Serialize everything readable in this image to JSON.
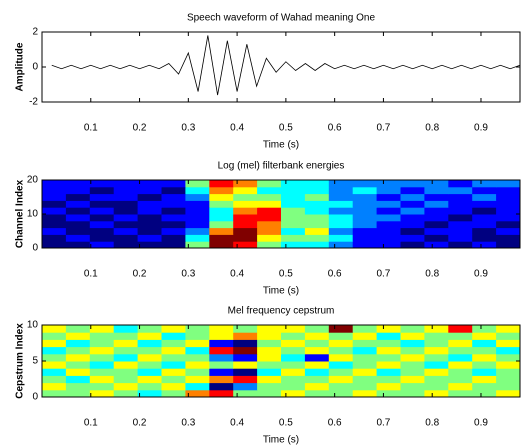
{
  "chart_data": [
    {
      "type": "line",
      "title": "Speech waveform of Wahad meaning One",
      "xlabel": "Time (s)",
      "ylabel": "Amplitude",
      "x": [
        0.02,
        0.04,
        0.06,
        0.08,
        0.1,
        0.12,
        0.14,
        0.16,
        0.18,
        0.2,
        0.22,
        0.24,
        0.26,
        0.28,
        0.3,
        0.32,
        0.34,
        0.36,
        0.38,
        0.4,
        0.42,
        0.44,
        0.46,
        0.48,
        0.5,
        0.52,
        0.54,
        0.56,
        0.58,
        0.6,
        0.62,
        0.64,
        0.66,
        0.68,
        0.7,
        0.72,
        0.74,
        0.76,
        0.78,
        0.8,
        0.82,
        0.84,
        0.86,
        0.88,
        0.9,
        0.92,
        0.94,
        0.96,
        0.98
      ],
      "series": [
        {
          "color": "#000000",
          "values": [
            0.1,
            -0.1,
            0.1,
            -0.1,
            0.1,
            -0.1,
            0.1,
            -0.1,
            0.1,
            -0.1,
            0.1,
            -0.1,
            0.2,
            -0.4,
            0.8,
            -1.4,
            1.8,
            -1.6,
            1.5,
            -1.4,
            1.3,
            -1.1,
            0.5,
            -0.3,
            0.3,
            -0.2,
            0.2,
            -0.2,
            0.2,
            -0.1,
            0.1,
            -0.1,
            0.1,
            -0.1,
            0.1,
            -0.1,
            0.1,
            -0.1,
            0.1,
            -0.1,
            0.1,
            -0.1,
            0.1,
            -0.1,
            0.1,
            -0.1,
            0.1,
            -0.1,
            0.1
          ]
        }
      ],
      "xlim": [
        0,
        0.98
      ],
      "xticks": [
        0.1,
        0.2,
        0.3,
        0.4,
        0.5,
        0.6,
        0.7,
        0.8,
        0.9
      ],
      "ylim": [
        -2,
        2
      ],
      "yticks": [
        -2,
        0,
        2
      ]
    },
    {
      "type": "heatmap",
      "title": "Log (mel) filterbank energies",
      "xlabel": "Time (s)",
      "ylabel": "Channel Index",
      "colormap": "jet",
      "z": [
        [
          2,
          2,
          3,
          2,
          2,
          2,
          6,
          10,
          9,
          6,
          5,
          5,
          4,
          3,
          3,
          2,
          3,
          2,
          3,
          2
        ],
        [
          2,
          3,
          2,
          2,
          3,
          2,
          5,
          10,
          10,
          7,
          6,
          6,
          5,
          3,
          3,
          3,
          2,
          3,
          2,
          2
        ],
        [
          3,
          2,
          2,
          3,
          2,
          3,
          4,
          8,
          10,
          8,
          5,
          7,
          4,
          3,
          3,
          2,
          3,
          3,
          2,
          3
        ],
        [
          2,
          2,
          3,
          2,
          2,
          2,
          3,
          6,
          9,
          8,
          6,
          6,
          5,
          4,
          3,
          3,
          2,
          3,
          3,
          2
        ],
        [
          2,
          3,
          2,
          3,
          2,
          3,
          3,
          5,
          9,
          9,
          6,
          6,
          5,
          4,
          4,
          3,
          3,
          2,
          3,
          3
        ],
        [
          3,
          2,
          3,
          2,
          3,
          2,
          3,
          5,
          8,
          9,
          6,
          5,
          4,
          4,
          3,
          4,
          3,
          3,
          2,
          3
        ],
        [
          2,
          3,
          2,
          2,
          3,
          3,
          3,
          6,
          7,
          7,
          5,
          5,
          5,
          4,
          4,
          3,
          4,
          3,
          3,
          3
        ],
        [
          3,
          2,
          3,
          3,
          2,
          3,
          4,
          7,
          6,
          6,
          5,
          6,
          4,
          4,
          3,
          4,
          3,
          3,
          4,
          3
        ],
        [
          3,
          3,
          2,
          3,
          3,
          2,
          5,
          8,
          7,
          5,
          5,
          5,
          4,
          5,
          4,
          3,
          4,
          4,
          3,
          3
        ],
        [
          3,
          3,
          3,
          3,
          3,
          3,
          6,
          9,
          8,
          6,
          5,
          5,
          4,
          4,
          4,
          4,
          4,
          3,
          4,
          4
        ]
      ],
      "xlim": [
        0,
        0.98
      ],
      "xticks": [
        0.1,
        0.2,
        0.3,
        0.4,
        0.5,
        0.6,
        0.7,
        0.8,
        0.9
      ],
      "ylim": [
        0,
        20
      ],
      "yticks": [
        0,
        10,
        20
      ]
    },
    {
      "type": "heatmap",
      "title": "Mel frequency cepstrum",
      "xlabel": "Time (s)",
      "ylabel": "Cepstrum Index",
      "colormap": "jet",
      "z": [
        [
          5,
          5,
          6,
          5,
          4,
          5,
          7,
          8,
          5,
          5,
          6,
          5,
          5,
          6,
          5,
          5,
          6,
          5,
          5,
          6
        ],
        [
          6,
          5,
          5,
          6,
          5,
          6,
          4,
          1,
          3,
          5,
          5,
          6,
          5,
          5,
          6,
          5,
          5,
          6,
          5,
          5
        ],
        [
          5,
          4,
          6,
          5,
          6,
          5,
          6,
          7,
          8,
          6,
          5,
          5,
          6,
          5,
          5,
          6,
          5,
          5,
          6,
          5
        ],
        [
          4,
          6,
          5,
          5,
          4,
          6,
          5,
          2,
          1,
          4,
          6,
          4,
          5,
          6,
          4,
          5,
          6,
          5,
          4,
          5
        ],
        [
          6,
          5,
          4,
          6,
          5,
          4,
          6,
          5,
          6,
          5,
          5,
          6,
          4,
          5,
          6,
          5,
          4,
          6,
          5,
          6
        ],
        [
          5,
          6,
          5,
          4,
          6,
          5,
          5,
          3,
          2,
          6,
          4,
          2,
          6,
          5,
          5,
          6,
          5,
          4,
          6,
          5
        ],
        [
          4,
          5,
          6,
          5,
          5,
          6,
          4,
          8,
          9,
          6,
          5,
          6,
          5,
          4,
          6,
          5,
          6,
          5,
          5,
          4
        ],
        [
          6,
          4,
          5,
          6,
          4,
          5,
          6,
          2,
          1,
          5,
          6,
          5,
          6,
          5,
          5,
          4,
          5,
          6,
          4,
          6
        ],
        [
          5,
          6,
          5,
          5,
          6,
          4,
          5,
          6,
          7,
          6,
          5,
          6,
          5,
          6,
          4,
          6,
          5,
          5,
          6,
          5
        ],
        [
          6,
          5,
          6,
          4,
          5,
          6,
          5,
          6,
          5,
          6,
          6,
          5,
          9,
          5,
          6,
          5,
          6,
          8,
          5,
          6
        ]
      ],
      "xlim": [
        0,
        0.98
      ],
      "xticks": [
        0.1,
        0.2,
        0.3,
        0.4,
        0.5,
        0.6,
        0.7,
        0.8,
        0.9
      ],
      "ylim": [
        0,
        10
      ],
      "yticks": [
        0,
        5,
        10
      ]
    }
  ]
}
